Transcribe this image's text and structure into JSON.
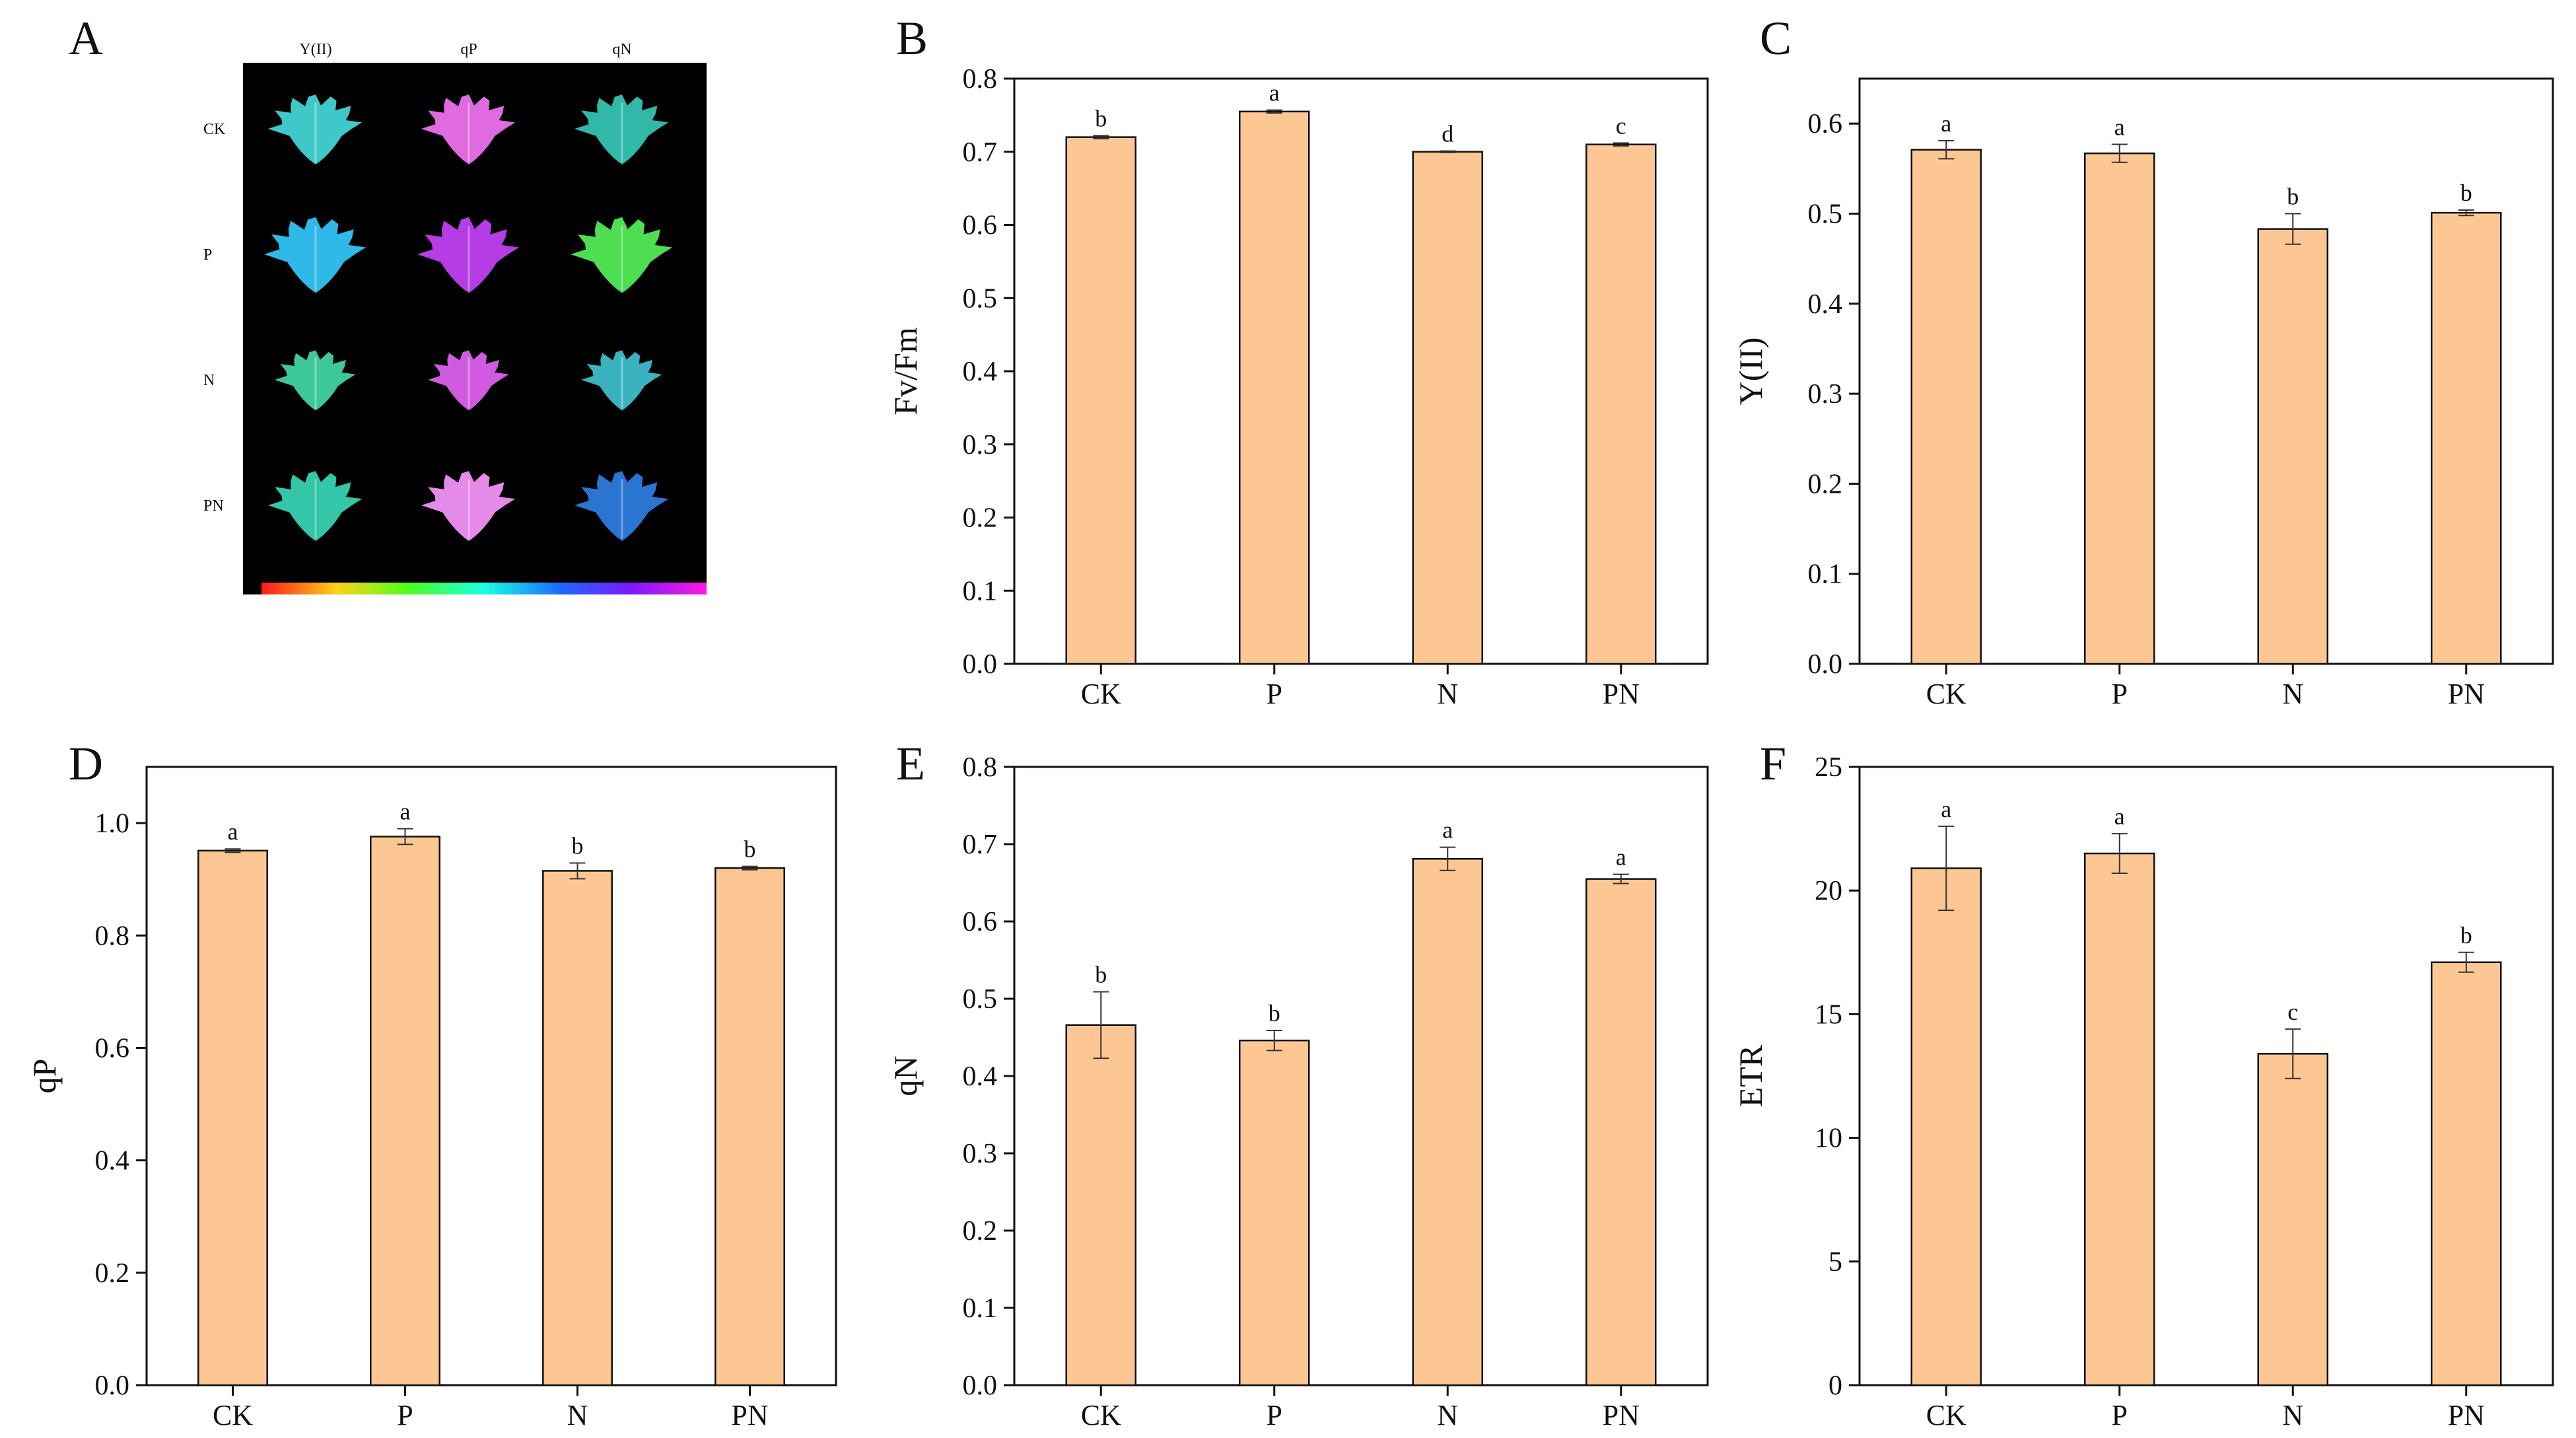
{
  "figure": {
    "heatmap_panel": {
      "letter": "A",
      "columns": [
        "Y(II)",
        "qP",
        "qN"
      ],
      "rows": [
        "CK",
        "P",
        "N",
        "PN"
      ],
      "colors": {
        "Y(II)": [
          "#3ec8c8",
          "#2fb9e8",
          "#3cc89a",
          "#33c6a8"
        ],
        "qP": [
          "#e06ae0",
          "#b63ce6",
          "#d05ae0",
          "#e58ae8"
        ],
        "qN": [
          "#30b8a8",
          "#4ede52",
          "#3ab2c0",
          "#2a74d2"
        ]
      }
    }
  },
  "chart_data": [
    {
      "panel": "B",
      "type": "bar",
      "categories": [
        "CK",
        "P",
        "N",
        "PN"
      ],
      "values": [
        0.72,
        0.755,
        0.7,
        0.71
      ],
      "errors": [
        0.002,
        0.002,
        0.001,
        0.002
      ],
      "significance": [
        "b",
        "a",
        "d",
        "c"
      ],
      "ylabel": "Fv/Fm",
      "ylim": [
        0,
        0.8
      ],
      "yticks": [
        "0.0",
        "0.1",
        "0.2",
        "0.3",
        "0.4",
        "0.5",
        "0.6",
        "0.7",
        "0.8"
      ],
      "bar_color": "#fcc793"
    },
    {
      "panel": "C",
      "type": "bar",
      "categories": [
        "CK",
        "P",
        "N",
        "PN"
      ],
      "values": [
        0.571,
        0.567,
        0.483,
        0.501
      ],
      "errors": [
        0.01,
        0.01,
        0.017,
        0.003
      ],
      "significance": [
        "a",
        "a",
        "b",
        "b"
      ],
      "ylabel": "Y(II)",
      "ylim": [
        0,
        0.65
      ],
      "yticks": [
        "0.0",
        "0.1",
        "0.2",
        "0.3",
        "0.4",
        "0.5",
        "0.6"
      ],
      "bar_color": "#fcc793"
    },
    {
      "panel": "D",
      "type": "bar",
      "categories": [
        "CK",
        "P",
        "N",
        "PN"
      ],
      "values": [
        0.951,
        0.976,
        0.915,
        0.92
      ],
      "errors": [
        0.003,
        0.014,
        0.014,
        0.003
      ],
      "significance": [
        "a",
        "a",
        "b",
        "b"
      ],
      "ylabel": "qP",
      "ylim": [
        0,
        1.1
      ],
      "yticks": [
        "0.0",
        "0.2",
        "0.4",
        "0.6",
        "0.8",
        "1.0"
      ],
      "bar_color": "#fcc793"
    },
    {
      "panel": "E",
      "type": "bar",
      "categories": [
        "CK",
        "P",
        "N",
        "PN"
      ],
      "values": [
        0.466,
        0.446,
        0.681,
        0.655
      ],
      "errors": [
        0.043,
        0.013,
        0.015,
        0.006
      ],
      "significance": [
        "b",
        "b",
        "a",
        "a"
      ],
      "ylabel": "qN",
      "ylim": [
        0,
        0.8
      ],
      "yticks": [
        "0.0",
        "0.1",
        "0.2",
        "0.3",
        "0.4",
        "0.5",
        "0.6",
        "0.7",
        "0.8"
      ],
      "bar_color": "#fcc793"
    },
    {
      "panel": "F",
      "type": "bar",
      "categories": [
        "CK",
        "P",
        "N",
        "PN"
      ],
      "values": [
        20.9,
        21.5,
        13.4,
        17.1
      ],
      "errors": [
        1.7,
        0.8,
        1.0,
        0.4
      ],
      "significance": [
        "a",
        "a",
        "c",
        "b"
      ],
      "ylabel": "ETR",
      "ylim": [
        0,
        25
      ],
      "yticks": [
        "0",
        "5",
        "10",
        "15",
        "20",
        "25"
      ],
      "bar_color": "#fcc793"
    }
  ]
}
